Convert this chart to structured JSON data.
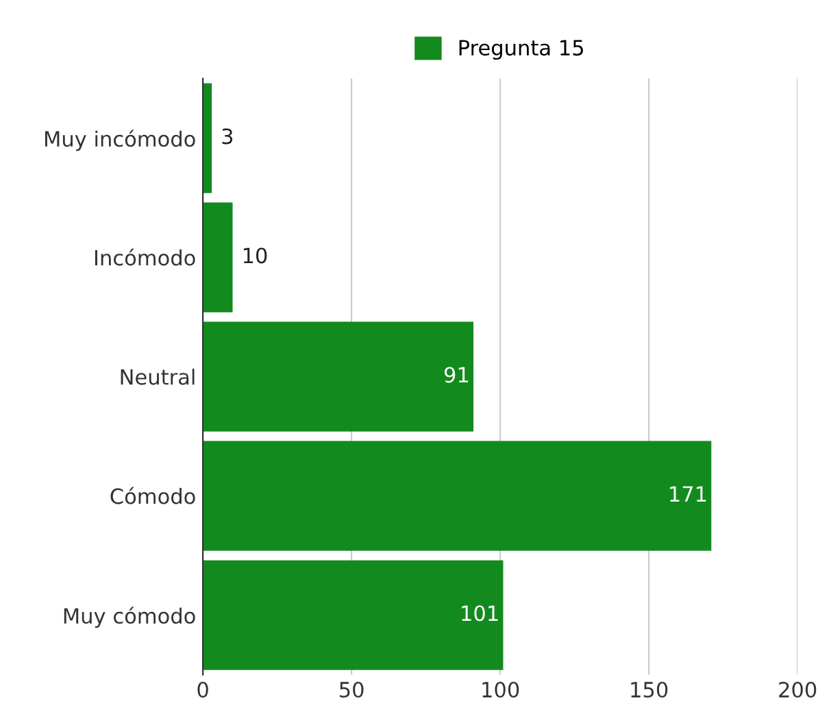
{
  "chart_data": {
    "type": "bar",
    "orientation": "horizontal",
    "categories": [
      "Muy incómodo",
      "Incómodo",
      "Neutral",
      "Cómodo",
      "Muy cómodo"
    ],
    "series": [
      {
        "name": "Pregunta 15",
        "color": "#138a1e",
        "values": [
          3,
          10,
          91,
          171,
          101
        ]
      }
    ],
    "xlim": [
      0,
      200
    ],
    "xticks": [
      0,
      50,
      100,
      150,
      200
    ],
    "grid": "x",
    "legend": "top",
    "data_labels": true
  }
}
